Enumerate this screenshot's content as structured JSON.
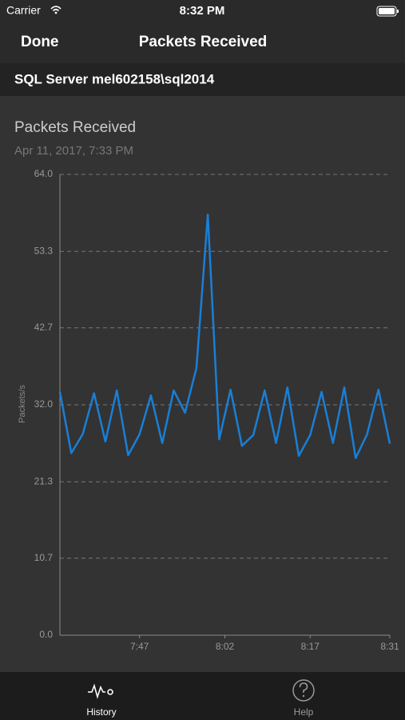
{
  "status_bar": {
    "carrier": "Carrier",
    "time": "8:32 PM"
  },
  "nav_bar": {
    "back": "Done",
    "title": "Packets Received"
  },
  "server": "SQL Server mel602158\\sql2014",
  "chart_data": {
    "type": "line",
    "title": "Packets Received",
    "subtitle": "Apr 11, 2017, 7:33 PM",
    "y_label": "Packets/s",
    "x": [
      "7:33",
      "7:35",
      "7:37",
      "7:39",
      "7:41",
      "7:43",
      "7:45",
      "7:47",
      "7:49",
      "7:51",
      "7:53",
      "7:55",
      "7:57",
      "7:59",
      "8:01",
      "8:03",
      "8:05",
      "8:07",
      "8:09",
      "8:11",
      "8:13",
      "8:15",
      "8:17",
      "8:19",
      "8:21",
      "8:23",
      "8:25",
      "8:27",
      "8:29",
      "8:31"
    ],
    "values": [
      33.8,
      25.3,
      27.9,
      33.6,
      26.9,
      34.0,
      25.0,
      27.9,
      33.3,
      26.7,
      34.0,
      30.9,
      37.1,
      58.4,
      27.2,
      34.1,
      26.3,
      27.8,
      34.0,
      26.7,
      34.4,
      24.9,
      27.8,
      33.8,
      26.7,
      34.4,
      24.6,
      27.9,
      34.1,
      26.6
    ],
    "color": "#1a7fd6",
    "xlim": [
      "7:33",
      "8:31"
    ],
    "xticks": [
      "7:47",
      "8:02",
      "8:17",
      "8:31"
    ],
    "ylim": [
      0,
      64
    ],
    "yticks": [
      {
        "value": 0,
        "label": "0.0"
      },
      {
        "value": 10.7,
        "label": "10.7"
      },
      {
        "value": 21.3,
        "label": "21.3"
      },
      {
        "value": 32,
        "label": "32.0"
      },
      {
        "value": 42.7,
        "label": "42.7"
      },
      {
        "value": 53.3,
        "label": "53.3"
      },
      {
        "value": 64,
        "label": "64.0"
      }
    ],
    "grid": true
  },
  "tab_bar": {
    "tabs": [
      {
        "label": "History"
      },
      {
        "label": "Help"
      }
    ]
  }
}
